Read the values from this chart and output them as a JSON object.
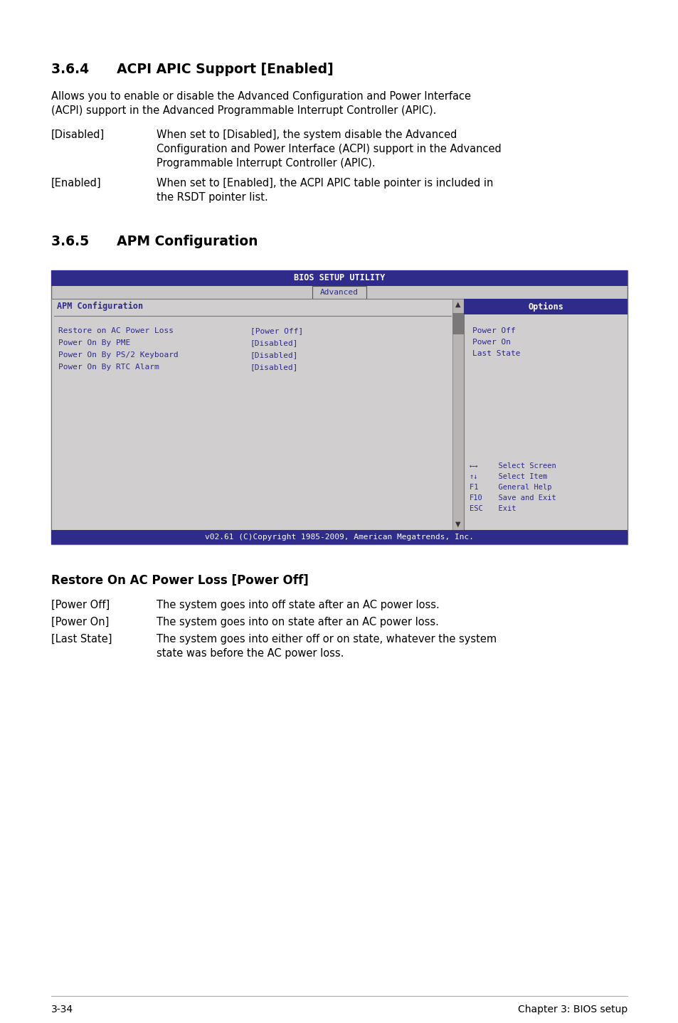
{
  "bg_color": "#ffffff",
  "section364_title": "3.6.4      ACPI APIC Support [Enabled]",
  "section364_body_line1": "Allows you to enable or disable the Advanced Configuration and Power Interface",
  "section364_body_line2": "(ACPI) support in the Advanced Programmable Interrupt Controller (APIC).",
  "section364_items": [
    {
      "label": "[Disabled]",
      "text_line1": "When set to [Disabled], the system disable the Advanced",
      "text_line2": "Configuration and Power Interface (ACPI) support in the Advanced",
      "text_line3": "Programmable Interrupt Controller (APIC)."
    },
    {
      "label": "[Enabled]",
      "text_line1": "When set to [Enabled], the ACPI APIC table pointer is included in",
      "text_line2": "the RSDT pointer list.",
      "text_line3": ""
    }
  ],
  "section365_title": "3.6.5      APM Configuration",
  "bios_header_color": "#2e2b8a",
  "bios_text_color": "#2e2b8a",
  "bios_bg_color": "#c8c6c6",
  "bios_title": "BIOS SETUP UTILITY",
  "bios_tab": "Advanced",
  "bios_menu_title": "APM Configuration",
  "bios_options_title": "Options",
  "bios_menu_items": [
    [
      "Restore on AC Power Loss",
      "[Power Off]"
    ],
    [
      "Power On By PME",
      "[Disabled]"
    ],
    [
      "Power On By PS/2 Keyboard",
      "[Disabled]"
    ],
    [
      "Power On By RTC Alarm",
      "[Disabled]"
    ]
  ],
  "bios_options_items": [
    "Power Off",
    "Power On",
    "Last State"
  ],
  "bios_nav_items": [
    [
      "←→",
      "  Select Screen"
    ],
    [
      "↑↓",
      "  Select Item"
    ],
    [
      "F1 ",
      "  General Help"
    ],
    [
      "F10",
      "  Save and Exit"
    ],
    [
      "ESC",
      "  Exit"
    ]
  ],
  "bios_footer": "v02.61 (C)Copyright 1985-2009, American Megatrends, Inc.",
  "restore_section_title": "Restore On AC Power Loss [Power Off]",
  "restore_items": [
    {
      "label": "[Power Off]",
      "text_line1": "The system goes into off state after an AC power loss.",
      "text_line2": ""
    },
    {
      "label": "[Power On]",
      "text_line1": "The system goes into on state after an AC power loss.",
      "text_line2": ""
    },
    {
      "label": "[Last State]",
      "text_line1": "The system goes into either off or on state, whatever the system",
      "text_line2": "state was before the AC power loss."
    }
  ],
  "footer_left": "3-34",
  "footer_right": "Chapter 3: BIOS setup"
}
